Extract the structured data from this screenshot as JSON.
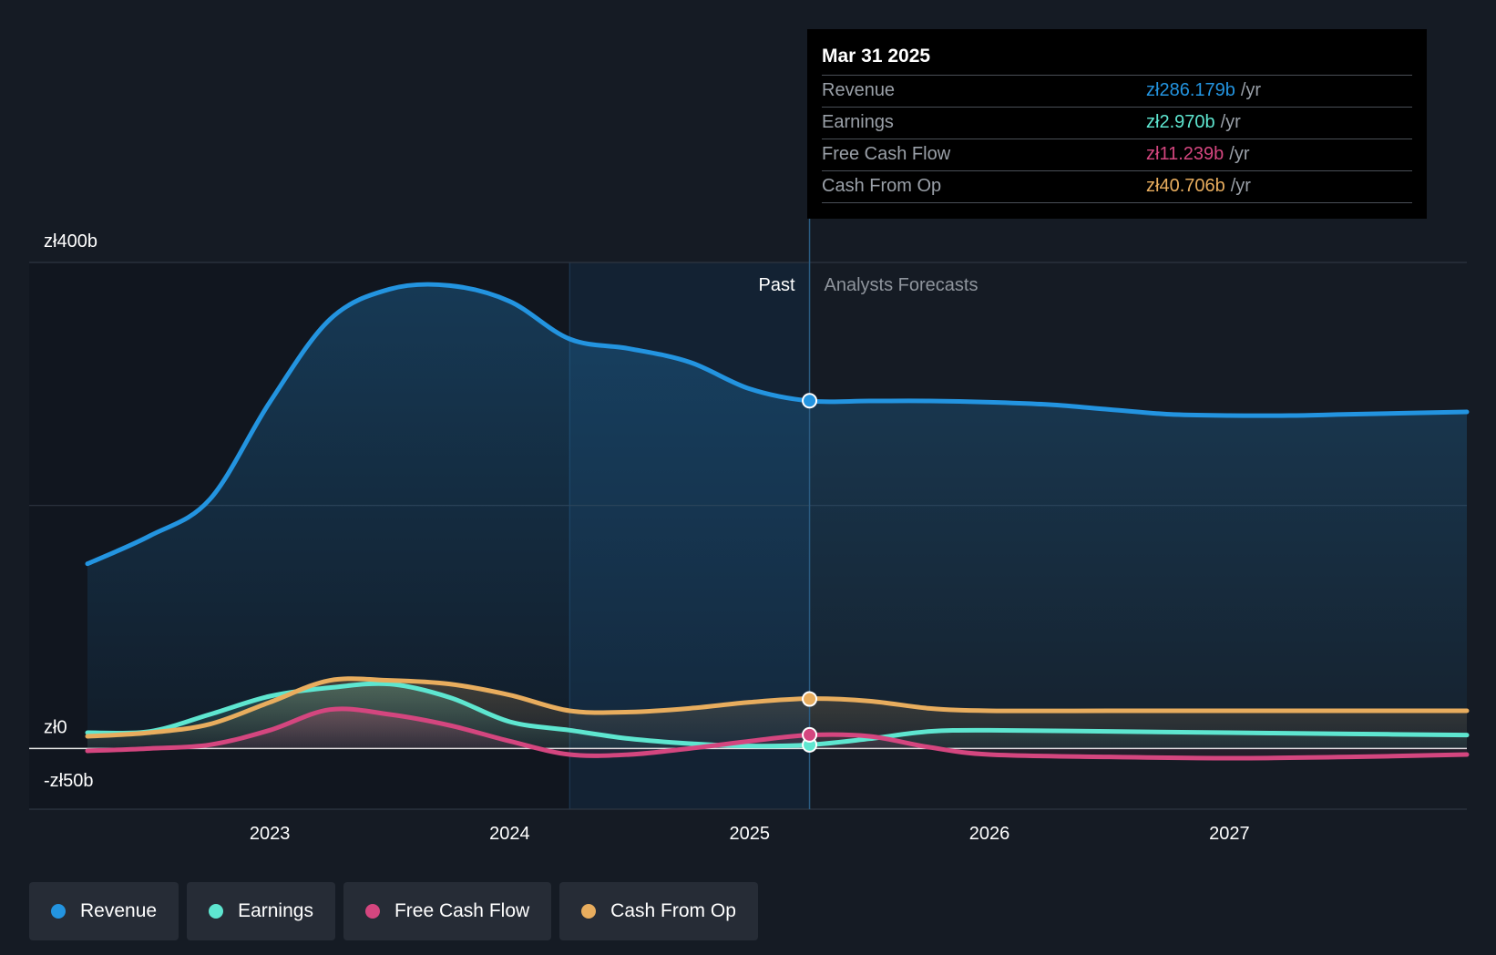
{
  "colors": {
    "revenue": "#2394e0",
    "earnings": "#5ee6d0",
    "free_cash_flow": "#d4467f",
    "cash_from_op": "#e8ad5e"
  },
  "tooltip": {
    "date": "Mar 31 2025",
    "rows": [
      {
        "name": "Revenue",
        "value": "zł286.179b",
        "unit": "/yr",
        "color": "#2394e0"
      },
      {
        "name": "Earnings",
        "value": "zł2.970b",
        "unit": "/yr",
        "color": "#5ee6d0"
      },
      {
        "name": "Free Cash Flow",
        "value": "zł11.239b",
        "unit": "/yr",
        "color": "#d4467f"
      },
      {
        "name": "Cash From Op",
        "value": "zł40.706b",
        "unit": "/yr",
        "color": "#e8ad5e"
      }
    ]
  },
  "legend": [
    {
      "label": "Revenue",
      "color": "#2394e0"
    },
    {
      "label": "Earnings",
      "color": "#5ee6d0"
    },
    {
      "label": "Free Cash Flow",
      "color": "#d4467f"
    },
    {
      "label": "Cash From Op",
      "color": "#e8ad5e"
    }
  ],
  "chart_data": {
    "type": "line",
    "title": "",
    "xlabel": "",
    "ylabel": "",
    "x_range": [
      2022.24,
      2027.99
    ],
    "ylim": [
      -50,
      400
    ],
    "y_ticks": [
      {
        "value": 400,
        "label": "zł400b"
      },
      {
        "value": 0,
        "label": "zł0"
      },
      {
        "value": -50,
        "label": "-zł50b"
      }
    ],
    "x_ticks": [
      {
        "value": 2023,
        "label": "2023"
      },
      {
        "value": 2024,
        "label": "2024"
      },
      {
        "value": 2025,
        "label": "2025"
      },
      {
        "value": 2026,
        "label": "2026"
      },
      {
        "value": 2027,
        "label": "2027"
      }
    ],
    "past_label": "Past",
    "forecast_label": "Analysts Forecasts",
    "past_end": 2025.25,
    "highlight_start": 2024.25,
    "series": [
      {
        "name": "Revenue",
        "key": "revenue",
        "color": "#2394e0",
        "marker_value": 286.179,
        "points": [
          [
            2022.24,
            152
          ],
          [
            2022.5,
            175
          ],
          [
            2022.75,
            205
          ],
          [
            2023.0,
            285
          ],
          [
            2023.25,
            353
          ],
          [
            2023.5,
            378
          ],
          [
            2023.75,
            381
          ],
          [
            2024.0,
            368
          ],
          [
            2024.25,
            337
          ],
          [
            2024.5,
            329
          ],
          [
            2024.75,
            318
          ],
          [
            2025.0,
            296
          ],
          [
            2025.25,
            286
          ],
          [
            2025.5,
            286
          ],
          [
            2025.75,
            286
          ],
          [
            2026.0,
            285
          ],
          [
            2026.25,
            283
          ],
          [
            2026.5,
            279
          ],
          [
            2026.75,
            275
          ],
          [
            2027.0,
            274
          ],
          [
            2027.25,
            274
          ],
          [
            2027.5,
            275
          ],
          [
            2027.99,
            277
          ]
        ]
      },
      {
        "name": "Earnings",
        "key": "earnings",
        "color": "#5ee6d0",
        "marker_value": 2.97,
        "points": [
          [
            2022.24,
            13
          ],
          [
            2022.5,
            14
          ],
          [
            2022.75,
            28
          ],
          [
            2023.0,
            43
          ],
          [
            2023.25,
            50
          ],
          [
            2023.5,
            53
          ],
          [
            2023.75,
            42
          ],
          [
            2024.0,
            22
          ],
          [
            2024.25,
            15
          ],
          [
            2024.5,
            8
          ],
          [
            2024.75,
            4
          ],
          [
            2025.0,
            2
          ],
          [
            2025.25,
            3
          ],
          [
            2025.5,
            8
          ],
          [
            2025.75,
            14
          ],
          [
            2026.0,
            15
          ],
          [
            2026.5,
            14
          ],
          [
            2027.0,
            13
          ],
          [
            2027.5,
            12
          ],
          [
            2027.99,
            11
          ]
        ]
      },
      {
        "name": "Free Cash Flow",
        "key": "free_cash_flow",
        "color": "#d4467f",
        "marker_value": 11.239,
        "points": [
          [
            2022.24,
            -2
          ],
          [
            2022.5,
            0
          ],
          [
            2022.75,
            3
          ],
          [
            2023.0,
            15
          ],
          [
            2023.25,
            32
          ],
          [
            2023.5,
            28
          ],
          [
            2023.75,
            19
          ],
          [
            2024.0,
            6
          ],
          [
            2024.25,
            -5
          ],
          [
            2024.5,
            -5
          ],
          [
            2024.75,
            0
          ],
          [
            2025.0,
            6
          ],
          [
            2025.25,
            11
          ],
          [
            2025.5,
            10
          ],
          [
            2025.75,
            1
          ],
          [
            2026.0,
            -5
          ],
          [
            2026.5,
            -7
          ],
          [
            2027.0,
            -8
          ],
          [
            2027.5,
            -7
          ],
          [
            2027.99,
            -5
          ]
        ]
      },
      {
        "name": "Cash From Op",
        "key": "cash_from_op",
        "color": "#e8ad5e",
        "marker_value": 40.706,
        "points": [
          [
            2022.24,
            10
          ],
          [
            2022.5,
            13
          ],
          [
            2022.75,
            20
          ],
          [
            2023.0,
            38
          ],
          [
            2023.25,
            56
          ],
          [
            2023.5,
            56
          ],
          [
            2023.75,
            53
          ],
          [
            2024.0,
            44
          ],
          [
            2024.25,
            31
          ],
          [
            2024.5,
            30
          ],
          [
            2024.75,
            33
          ],
          [
            2025.0,
            38
          ],
          [
            2025.25,
            41
          ],
          [
            2025.5,
            39
          ],
          [
            2025.75,
            33
          ],
          [
            2026.0,
            31
          ],
          [
            2026.5,
            31
          ],
          [
            2027.0,
            31
          ],
          [
            2027.5,
            31
          ],
          [
            2027.99,
            31
          ]
        ]
      }
    ]
  }
}
